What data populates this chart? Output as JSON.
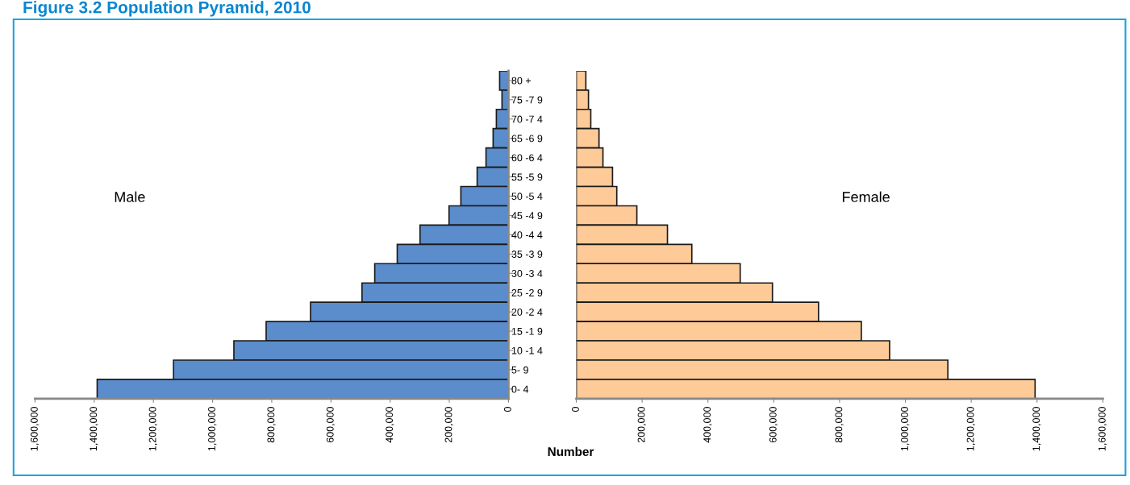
{
  "chart_data": [
    {
      "type": "bar",
      "orientation": "horizontal",
      "title": "Figure 3.2 Population Pyramid, 2010",
      "xlabel": "Number",
      "tick_labels": "x",
      "categories": [
        null,
        null,
        null,
        null,
        null,
        null,
        null,
        null,
        null,
        null,
        null,
        null,
        null,
        null,
        null,
        null,
        null
      ],
      "series": [
        {
          "name": "Male",
          "color": "#5b8ccb",
          "values": [
            30000,
            22000,
            41000,
            52000,
            76000,
            106000,
            161000,
            201000,
            299000,
            376000,
            452000,
            495000,
            669000,
            819000,
            928000,
            1132000,
            1390000
          ]
        }
      ],
      "xlim": [
        1600000,
        0
      ],
      "xticks": [
        {
          "value": 1600000,
          "label": "1,600,000"
        },
        {
          "value": 1400000,
          "label": "1,400,000"
        },
        {
          "value": 1200000,
          "label": "1,200,000"
        },
        {
          "value": 1000000,
          "label": "1,000,000"
        },
        {
          "value": 800000,
          "label": "800,000"
        },
        {
          "value": 600000,
          "label": "600,000"
        },
        {
          "value": 400000,
          "label": "400,000"
        },
        {
          "value": 200000,
          "label": "200,000"
        },
        0
      ]
    },
    {
      "type": "bar",
      "orientation": "horizontal",
      "categories": [
        "80 +",
        "75 -7 9",
        "70 -7 4",
        "65 -6 9",
        "60 -6 4",
        "55 -5 9",
        "50 -5 4",
        "45 -4 9",
        "40 -4 4",
        "35 -3 9",
        "30 -3 4",
        "25 -2 9",
        "20 -2 4",
        "15 -1 9",
        "10 -1 4",
        "5- 9",
        "0- 4"
      ],
      "series": [
        {
          "name": "Female",
          "color": "#fdca98",
          "values": [
            29000,
            37000,
            44000,
            69000,
            81000,
            110000,
            123000,
            184000,
            277000,
            351000,
            498000,
            596000,
            736000,
            866000,
            952000,
            1129000,
            1394000
          ]
        }
      ],
      "xlim": [
        0,
        1600000
      ],
      "xticks": [
        0,
        {
          "value": 200000,
          "label": "200,000"
        },
        {
          "value": 400000,
          "label": "400,000"
        },
        {
          "value": 600000,
          "label": "600,000"
        },
        {
          "value": 800000,
          "label": "800,000"
        },
        {
          "value": 1000000,
          "label": "1,000,000"
        },
        {
          "value": 1200000,
          "label": "1,200,000"
        },
        {
          "value": 1400000,
          "label": "1,400,000"
        },
        {
          "value": 1600000,
          "label": "1,600,000"
        }
      ]
    }
  ]
}
